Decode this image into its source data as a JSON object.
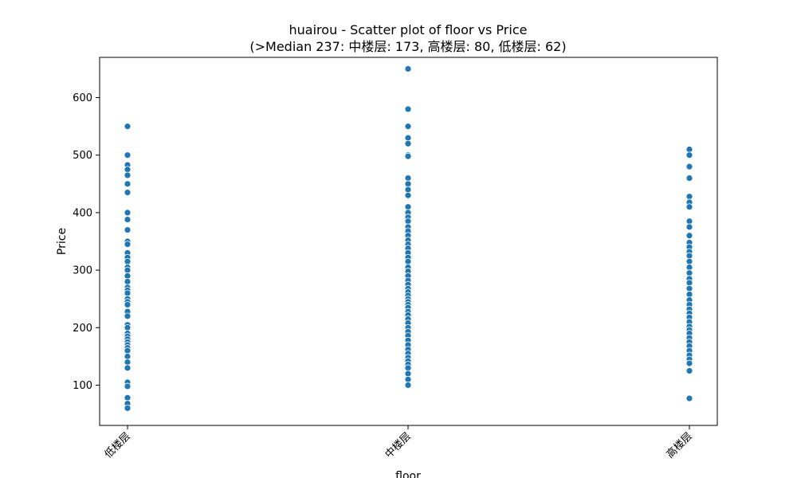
{
  "chart_data": {
    "type": "scatter",
    "title": "huairou - Scatter plot of floor vs Price",
    "subtitle": "(>Median 237: 中楼层: 173, 高楼层: 80, 低楼层: 62)",
    "xlabel": "floor",
    "ylabel": "Price",
    "categories": [
      "低楼层",
      "中楼层",
      "高楼层"
    ],
    "ylim": [
      30,
      670
    ],
    "yticks": [
      100,
      200,
      300,
      400,
      500,
      600
    ],
    "grid": false,
    "marker_color": "#1f77b4",
    "series": [
      {
        "values": [
          [
            0,
            550
          ],
          [
            0,
            500
          ],
          [
            0,
            483
          ],
          [
            0,
            475
          ],
          [
            0,
            465
          ],
          [
            0,
            450
          ],
          [
            0,
            435
          ],
          [
            0,
            400
          ],
          [
            0,
            388
          ],
          [
            0,
            370
          ],
          [
            0,
            350
          ],
          [
            0,
            345
          ],
          [
            0,
            330
          ],
          [
            0,
            322
          ],
          [
            0,
            315
          ],
          [
            0,
            305
          ],
          [
            0,
            300
          ],
          [
            0,
            290
          ],
          [
            0,
            280
          ],
          [
            0,
            270
          ],
          [
            0,
            265
          ],
          [
            0,
            260
          ],
          [
            0,
            250
          ],
          [
            0,
            245
          ],
          [
            0,
            240
          ],
          [
            0,
            228
          ],
          [
            0,
            220
          ],
          [
            0,
            205
          ],
          [
            0,
            200
          ],
          [
            0,
            190
          ],
          [
            0,
            185
          ],
          [
            0,
            180
          ],
          [
            0,
            175
          ],
          [
            0,
            170
          ],
          [
            0,
            165
          ],
          [
            0,
            160
          ],
          [
            0,
            150
          ],
          [
            0,
            140
          ],
          [
            0,
            130
          ],
          [
            0,
            105
          ],
          [
            0,
            98
          ],
          [
            0,
            78
          ],
          [
            0,
            68
          ],
          [
            0,
            60
          ],
          [
            1,
            650
          ],
          [
            1,
            580
          ],
          [
            1,
            550
          ],
          [
            1,
            530
          ],
          [
            1,
            520
          ],
          [
            1,
            500
          ],
          [
            1,
            498
          ],
          [
            1,
            460
          ],
          [
            1,
            450
          ],
          [
            1,
            440
          ],
          [
            1,
            430
          ],
          [
            1,
            410
          ],
          [
            1,
            400
          ],
          [
            1,
            392
          ],
          [
            1,
            385
          ],
          [
            1,
            375
          ],
          [
            1,
            368
          ],
          [
            1,
            360
          ],
          [
            1,
            352
          ],
          [
            1,
            345
          ],
          [
            1,
            338
          ],
          [
            1,
            330
          ],
          [
            1,
            322
          ],
          [
            1,
            315
          ],
          [
            1,
            305
          ],
          [
            1,
            298
          ],
          [
            1,
            290
          ],
          [
            1,
            282
          ],
          [
            1,
            275
          ],
          [
            1,
            268
          ],
          [
            1,
            262
          ],
          [
            1,
            256
          ],
          [
            1,
            250
          ],
          [
            1,
            245
          ],
          [
            1,
            240
          ],
          [
            1,
            235
          ],
          [
            1,
            228
          ],
          [
            1,
            222
          ],
          [
            1,
            215
          ],
          [
            1,
            208
          ],
          [
            1,
            200
          ],
          [
            1,
            193
          ],
          [
            1,
            186
          ],
          [
            1,
            178
          ],
          [
            1,
            170
          ],
          [
            1,
            162
          ],
          [
            1,
            155
          ],
          [
            1,
            148
          ],
          [
            1,
            142
          ],
          [
            1,
            136
          ],
          [
            1,
            130
          ],
          [
            1,
            120
          ],
          [
            1,
            110
          ],
          [
            1,
            100
          ],
          [
            2,
            510
          ],
          [
            2,
            500
          ],
          [
            2,
            480
          ],
          [
            2,
            460
          ],
          [
            2,
            428
          ],
          [
            2,
            418
          ],
          [
            2,
            410
          ],
          [
            2,
            385
          ],
          [
            2,
            375
          ],
          [
            2,
            360
          ],
          [
            2,
            348
          ],
          [
            2,
            340
          ],
          [
            2,
            332
          ],
          [
            2,
            325
          ],
          [
            2,
            315
          ],
          [
            2,
            305
          ],
          [
            2,
            295
          ],
          [
            2,
            285
          ],
          [
            2,
            278
          ],
          [
            2,
            268
          ],
          [
            2,
            258
          ],
          [
            2,
            248
          ],
          [
            2,
            240
          ],
          [
            2,
            232
          ],
          [
            2,
            225
          ],
          [
            2,
            218
          ],
          [
            2,
            210
          ],
          [
            2,
            202
          ],
          [
            2,
            196
          ],
          [
            2,
            190
          ],
          [
            2,
            182
          ],
          [
            2,
            175
          ],
          [
            2,
            168
          ],
          [
            2,
            160
          ],
          [
            2,
            152
          ],
          [
            2,
            145
          ],
          [
            2,
            138
          ],
          [
            2,
            125
          ],
          [
            2,
            77
          ]
        ]
      }
    ]
  }
}
